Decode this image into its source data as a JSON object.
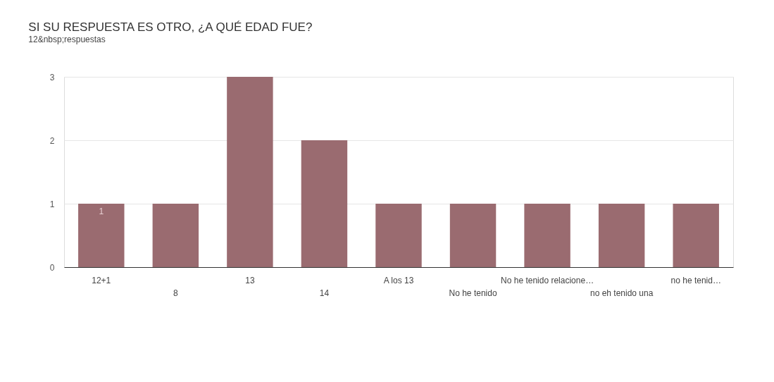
{
  "chart_data": {
    "type": "bar",
    "title": "SI SU RESPUESTA ES OTRO, ¿A QUÉ EDAD FUE?",
    "subtitle": "12&nbsp;respuestas",
    "categories": [
      "12+1",
      "8",
      "13",
      "14",
      "A los 13",
      "No he tenido",
      "No he tenido relacione…",
      "no eh tenido una",
      "no he tenid…"
    ],
    "values": [
      1,
      1,
      3,
      2,
      1,
      1,
      1,
      1,
      1
    ],
    "value_labels": [
      "1",
      null,
      null,
      null,
      null,
      null,
      null,
      null,
      null
    ],
    "color": "#9a6b70",
    "ylim": [
      0,
      3
    ],
    "yticks": [
      0,
      1,
      2,
      3
    ],
    "grid": "y"
  }
}
